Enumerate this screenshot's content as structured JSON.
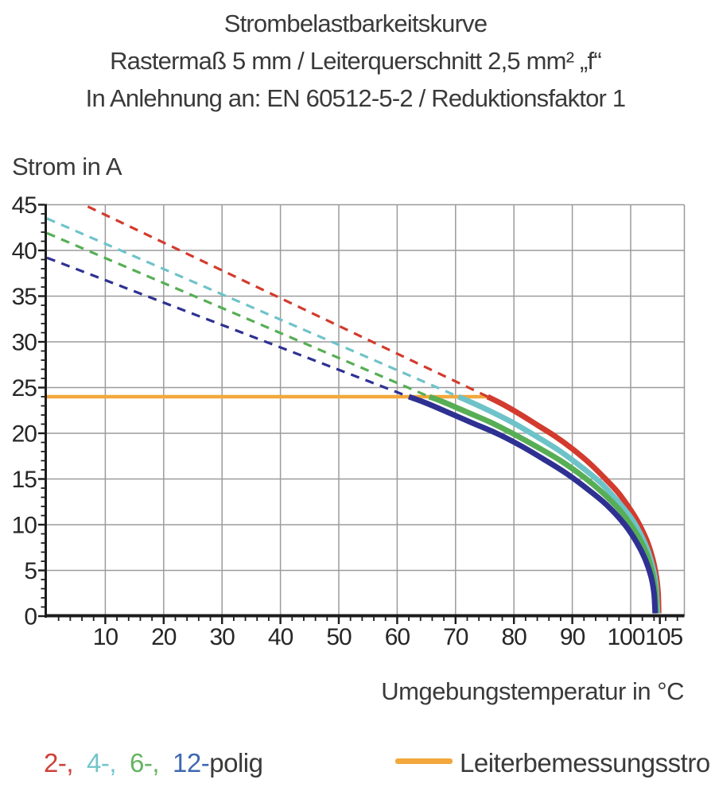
{
  "title": {
    "line1": "Strombelastbarkeitskurve",
    "line2": "Rastermaß 5 mm / Leiterquerschnitt 2,5 mm² „f“",
    "line3": "In Anlehnung an: EN 60512-5-2 / Reduktionsfaktor 1"
  },
  "chart_data": {
    "type": "line",
    "title": "Strombelastbarkeitskurve",
    "xlabel": "Umgebungstemperatur in °C",
    "ylabel": "Strom in A",
    "xlim": [
      0,
      109
    ],
    "ylim": [
      0,
      45
    ],
    "grid": "major",
    "x_ticks_major": [
      10,
      20,
      30,
      40,
      50,
      60,
      70,
      80,
      90,
      100,
      105
    ],
    "x_minor_step": 2,
    "x_minor_range": [
      2,
      108
    ],
    "x_label_offsets": {
      "100": -6,
      "105": 5
    },
    "y_ticks_major": [
      0,
      5,
      10,
      15,
      20,
      25,
      30,
      35,
      40,
      45
    ],
    "y_minor_step": 1,
    "colors": {
      "grid": "#9b9b9b",
      "axis": "#1c1c1c",
      "tick_label": "#262626"
    },
    "series": [
      {
        "name": "2-polig",
        "color": "#d23b2d",
        "dashed": [
          [
            7,
            44.8
          ],
          [
            75.5,
            24
          ]
        ],
        "solid": [
          [
            75.5,
            24
          ],
          [
            78,
            23.2
          ],
          [
            81,
            22.1
          ],
          [
            84,
            20.9
          ],
          [
            87,
            19.7
          ],
          [
            90,
            18.3
          ],
          [
            93,
            16.7
          ],
          [
            96,
            14.8
          ],
          [
            98,
            13.4
          ],
          [
            100,
            11.6
          ],
          [
            101.5,
            10.0
          ],
          [
            102.8,
            8.2
          ],
          [
            103.8,
            6.2
          ],
          [
            104.4,
            4.3
          ],
          [
            104.7,
            2.5
          ],
          [
            104.8,
            0.3
          ]
        ]
      },
      {
        "name": "4-polig",
        "color": "#6ec3c9",
        "dashed": [
          [
            0,
            43.5
          ],
          [
            70.5,
            24
          ]
        ],
        "solid": [
          [
            70.5,
            24
          ],
          [
            73,
            23.3
          ],
          [
            76,
            22.4
          ],
          [
            80,
            21.1
          ],
          [
            84,
            19.6
          ],
          [
            88,
            18.0
          ],
          [
            92,
            16.1
          ],
          [
            95,
            14.5
          ],
          [
            98,
            12.4
          ],
          [
            100,
            10.8
          ],
          [
            101.5,
            9.2
          ],
          [
            102.8,
            7.4
          ],
          [
            103.8,
            5.3
          ],
          [
            104.3,
            3.6
          ],
          [
            104.6,
            0.3
          ]
        ]
      },
      {
        "name": "6-polig",
        "color": "#57ae55",
        "dashed": [
          [
            0,
            41.9
          ],
          [
            65.5,
            24
          ]
        ],
        "solid": [
          [
            65.5,
            24
          ],
          [
            68,
            23.4
          ],
          [
            72,
            22.3
          ],
          [
            76,
            21.2
          ],
          [
            80,
            19.9
          ],
          [
            84,
            18.5
          ],
          [
            88,
            17.0
          ],
          [
            92,
            15.2
          ],
          [
            95,
            13.6
          ],
          [
            98,
            11.7
          ],
          [
            100,
            10.0
          ],
          [
            101.5,
            8.5
          ],
          [
            102.8,
            6.7
          ],
          [
            103.7,
            4.8
          ],
          [
            104.2,
            2.9
          ],
          [
            104.4,
            0.3
          ]
        ]
      },
      {
        "name": "12-polig",
        "color": "#2e3192",
        "dashed": [
          [
            0,
            39.2
          ],
          [
            62,
            24
          ]
        ],
        "solid": [
          [
            62,
            24
          ],
          [
            65,
            23.3
          ],
          [
            69,
            22.2
          ],
          [
            73,
            21.1
          ],
          [
            77,
            20.0
          ],
          [
            81,
            18.7
          ],
          [
            85,
            17.2
          ],
          [
            89,
            15.6
          ],
          [
            93,
            13.7
          ],
          [
            96,
            12.1
          ],
          [
            99,
            10.0
          ],
          [
            101,
            8.1
          ],
          [
            102.5,
            6.2
          ],
          [
            103.5,
            4.3
          ],
          [
            104,
            2.5
          ],
          [
            104.2,
            0.3
          ]
        ]
      }
    ],
    "rated_current_line": {
      "name": "Leiterbemessungsstrom",
      "color": "#f2a83c",
      "y": 24,
      "x_range": [
        0,
        75.5
      ]
    }
  },
  "legend": {
    "poles": {
      "items": [
        {
          "label": "2-,",
          "color": "#cf4038"
        },
        {
          "label": "4-,",
          "color": "#74c5cb"
        },
        {
          "label": "6-,",
          "color": "#63b561"
        },
        {
          "label": "12-",
          "color": "#3e68b0"
        },
        {
          "label": "polig",
          "color": "#3a3a3a"
        }
      ]
    },
    "rating": {
      "label": "Leiterbemessungsstrom",
      "color": "#f2a83c"
    }
  }
}
